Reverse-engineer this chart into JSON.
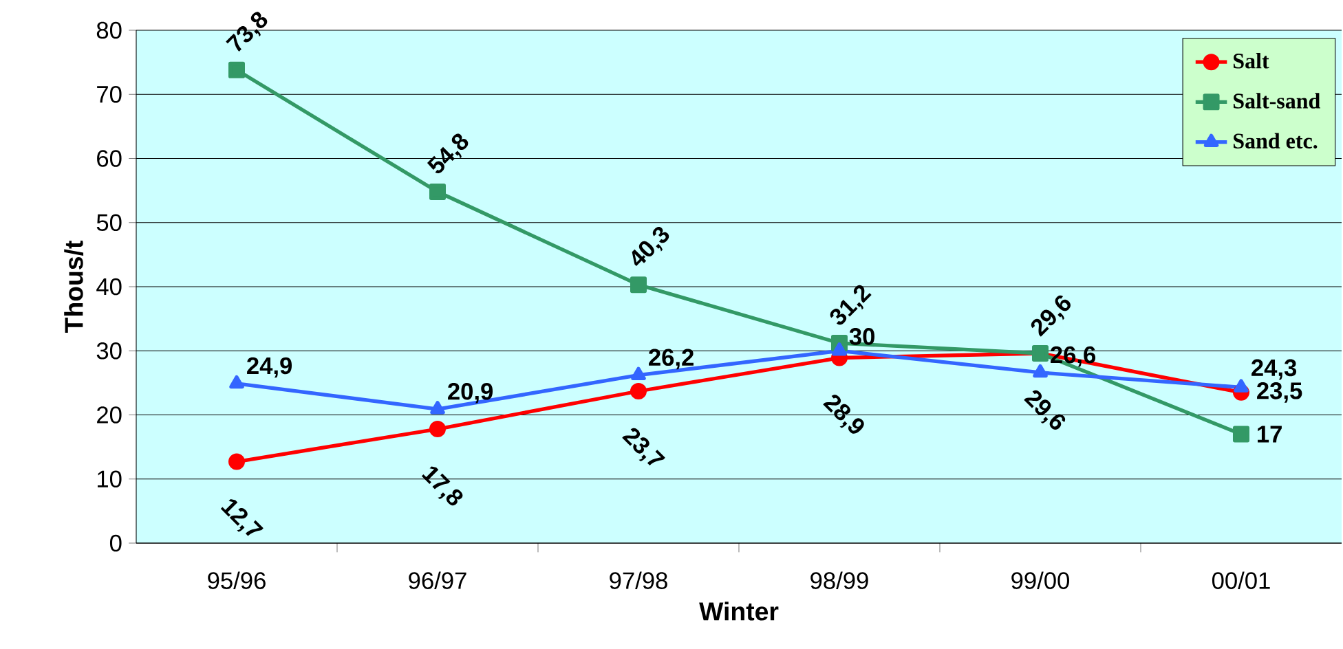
{
  "chart_data": {
    "type": "line",
    "xlabel": "Winter",
    "ylabel": "Thous/t",
    "categories": [
      "95/96",
      "96/97",
      "97/98",
      "98/99",
      "99/00",
      "00/01"
    ],
    "series": [
      {
        "name": "Salt",
        "color": "#ff0000",
        "marker": "circle",
        "values": [
          12.7,
          17.8,
          23.7,
          28.9,
          29.6,
          23.5
        ],
        "value_labels": [
          "12,7",
          "17,8",
          "23,7",
          "28,9",
          "29,6",
          "23,5"
        ]
      },
      {
        "name": "Salt-sand",
        "color": "#339966",
        "marker": "square",
        "values": [
          73.8,
          54.8,
          40.3,
          31.2,
          29.6,
          17
        ],
        "value_labels": [
          "73,8",
          "54,8",
          "40,3",
          "31,2",
          "29,6",
          "17"
        ]
      },
      {
        "name": "Sand etc.",
        "color": "#3366ff",
        "marker": "triangle",
        "values": [
          24.9,
          20.9,
          26.2,
          30,
          26.6,
          24.3
        ],
        "value_labels": [
          "24,9",
          "20,9",
          "26,2",
          "30",
          "26,6",
          "24,3"
        ]
      }
    ],
    "ylim": [
      0,
      80
    ],
    "yticks": [
      0,
      10,
      20,
      30,
      40,
      50,
      60,
      70,
      80
    ],
    "grid": "y",
    "legend": "top right",
    "line_style": "solid"
  }
}
